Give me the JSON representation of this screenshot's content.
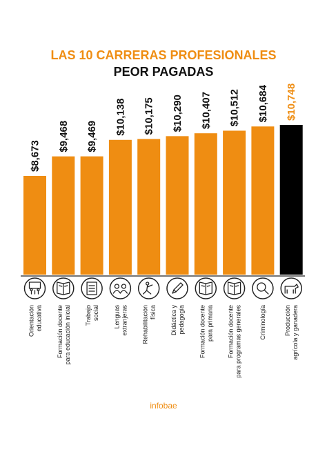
{
  "chart_data": {
    "type": "bar",
    "title_line1": "LAS 10 CARRERAS PROFESIONALES",
    "title_line2": "PEOR PAGADAS",
    "categories": [
      [
        "Orientación",
        "educativa"
      ],
      [
        "Formación docente",
        "para educación inicial"
      ],
      [
        "Trabajo",
        "social"
      ],
      [
        "Lenguas",
        "extranjeras"
      ],
      [
        "Rehabilitación",
        "física"
      ],
      [
        "Didáctica y",
        "pedagogía"
      ],
      [
        "Formación docente",
        "para primaria"
      ],
      [
        "Formación docente",
        "para programas generales"
      ],
      [
        "Criminología"
      ],
      [
        "Producción",
        "agrícola y ganadera"
      ]
    ],
    "values": [
      8673,
      9468,
      9469,
      10138,
      10175,
      10290,
      10407,
      10512,
      10684,
      10748
    ],
    "value_labels": [
      "$8,673",
      "$9,468",
      "$9,469",
      "$10,138",
      "$10,175",
      "$10,290",
      "$10,407",
      "$10,512",
      "$10,684",
      "$10,748"
    ],
    "icons": [
      "classroom-icon",
      "book-icon",
      "document-icon",
      "people-icon",
      "rehab-icon",
      "pencil-icon",
      "book-icon",
      "book-icon",
      "magnifier-icon",
      "cow-icon"
    ],
    "highlight_index": 9,
    "colors": {
      "bar": "#ef8d12",
      "highlight_bar": "#000000",
      "highlight_label": "#ef8d12",
      "label": "#111111"
    }
  },
  "footer": {
    "brand": "infobae"
  }
}
